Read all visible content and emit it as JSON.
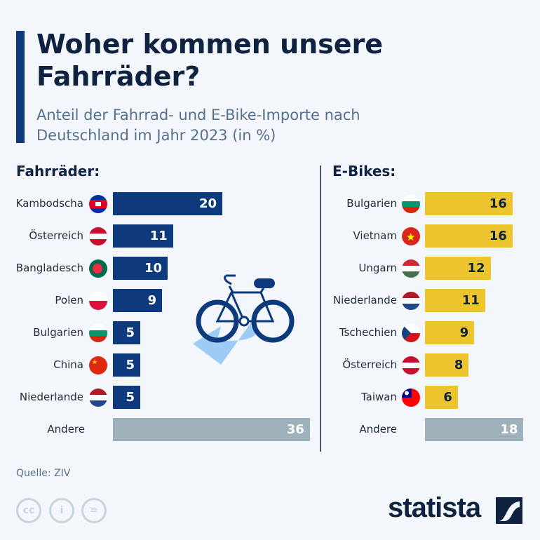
{
  "title": "Woher kommen unsere Fahrräder?",
  "subtitle": "Anteil der Fahrrad- und E-Bike-Importe nach Deutschland im Jahr 2023 (in %)",
  "source": "Quelle: ZIV",
  "logo": "statista",
  "colors": {
    "navy": "#0c3a7c",
    "yellow": "#ebc42e",
    "gray": "#9fb2bc"
  },
  "chart_data": [
    {
      "type": "bar",
      "title": "Fahrräder:",
      "orientation": "horizontal",
      "categories": [
        "Kambodscha",
        "Österreich",
        "Bangladesch",
        "Polen",
        "Bulgarien",
        "China",
        "Niederlande",
        "Andere"
      ],
      "values": [
        20,
        11,
        10,
        9,
        5,
        5,
        5,
        36
      ],
      "flags": [
        "kh",
        "at",
        "bd",
        "pl",
        "bg",
        "cn",
        "nl",
        ""
      ]
    },
    {
      "type": "bar",
      "title": "E-Bikes:",
      "orientation": "horizontal",
      "categories": [
        "Bulgarien",
        "Vietnam",
        "Ungarn",
        "Niederlande",
        "Tschechien",
        "Österreich",
        "Taiwan",
        "Andere"
      ],
      "values": [
        16,
        16,
        12,
        11,
        9,
        8,
        6,
        18
      ],
      "flags": [
        "bg",
        "vn",
        "hu",
        "nl",
        "cz",
        "at",
        "tw",
        ""
      ]
    }
  ]
}
